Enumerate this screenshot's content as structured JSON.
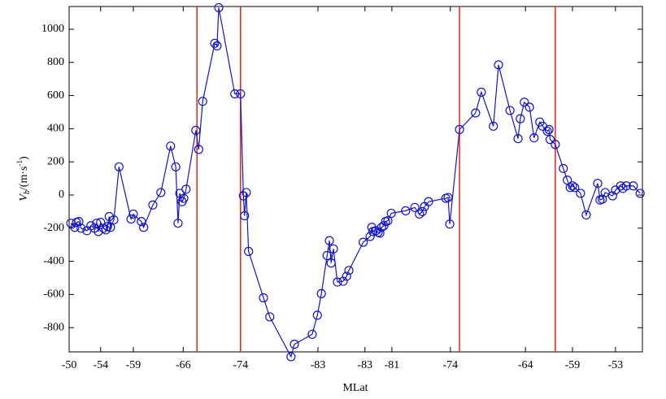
{
  "chart_data": {
    "type": "line",
    "x_label": "MLat",
    "y_label": [
      "V",
      "b",
      "/(m·s",
      "-1",
      ")"
    ],
    "xlim": [
      0,
      100
    ],
    "xticks": [
      {
        "value": 0,
        "label": "-50"
      },
      {
        "value": 5.5,
        "label": "-54"
      },
      {
        "value": 11.2,
        "label": "-59"
      },
      {
        "value": 19.9,
        "label": "-66"
      },
      {
        "value": 29.9,
        "label": "-74"
      },
      {
        "value": 43.4,
        "label": "-83"
      },
      {
        "value": 51.6,
        "label": "-83"
      },
      {
        "value": 56.3,
        "label": "-81"
      },
      {
        "value": 66.5,
        "label": "-74"
      },
      {
        "value": 79.6,
        "label": "-64"
      },
      {
        "value": 87.8,
        "label": "-59"
      },
      {
        "value": 95.3,
        "label": "-53"
      }
    ],
    "ylim": [
      -946,
      1137
    ],
    "yticks": [
      -800,
      -600,
      -400,
      -200,
      0,
      200,
      400,
      600,
      800,
      1000
    ],
    "vlines": {
      "color": "#e8231a",
      "x": [
        22.3,
        29.9,
        68.1,
        84.8
      ]
    },
    "series": [
      {
        "color": "#1414c8",
        "x": [
          0.3,
          1.0,
          1.3,
          1.7,
          2.1,
          3.1,
          3.8,
          4.4,
          4.8,
          5.1,
          5.5,
          6.0,
          6.4,
          6.7,
          7.0,
          7.2,
          7.8,
          8.7,
          10.8,
          11.2,
          12.6,
          13.0,
          14.6,
          16.0,
          17.7,
          18.6,
          19.0,
          19.3,
          19.7,
          20.0,
          20.4,
          22.1,
          22.6,
          23.3,
          25.4,
          25.8,
          26.1,
          28.9,
          29.9,
          30.4,
          30.6,
          30.9,
          31.3,
          33.9,
          35.0,
          38.7,
          39.3,
          42.4,
          43.3,
          44.0,
          45.0,
          45.4,
          45.7,
          46.1,
          46.8,
          47.8,
          48.4,
          48.8,
          51.3,
          52.5,
          52.8,
          53.0,
          53.5,
          53.9,
          54.2,
          54.5,
          54.9,
          55.2,
          55.6,
          56.2,
          58.7,
          60.3,
          61.1,
          61.6,
          62.0,
          62.7,
          65.7,
          66.1,
          66.4,
          68.1,
          70.9,
          71.9,
          74.0,
          74.9,
          76.9,
          78.3,
          78.7,
          79.4,
          80.3,
          81.1,
          82.1,
          82.6,
          83.4,
          83.7,
          83.9,
          84.8,
          86.2,
          86.9,
          87.4,
          87.8,
          88.2,
          89.2,
          90.2,
          92.2,
          92.6,
          93.0,
          93.5,
          94.8,
          95.3,
          96.2,
          96.6,
          97.2,
          98.4,
          99.6
        ],
        "values": [
          -170,
          -195,
          -165,
          -160,
          -200,
          -215,
          -185,
          -200,
          -170,
          -220,
          -165,
          -200,
          -210,
          -190,
          -130,
          -195,
          -150,
          170,
          -145,
          -115,
          -160,
          -195,
          -60,
          15,
          295,
          170,
          -170,
          10,
          -40,
          -20,
          35,
          390,
          275,
          565,
          915,
          900,
          1130,
          610,
          610,
          -5,
          -125,
          15,
          -340,
          -620,
          -735,
          -975,
          -900,
          -840,
          -725,
          -595,
          -365,
          -275,
          -410,
          -325,
          -525,
          -520,
          -490,
          -455,
          -285,
          -250,
          -195,
          -220,
          -215,
          -225,
          -230,
          -195,
          -185,
          -160,
          -155,
          -110,
          -95,
          -75,
          -115,
          -100,
          -70,
          -40,
          -20,
          -15,
          -175,
          395,
          495,
          620,
          415,
          785,
          510,
          340,
          460,
          560,
          530,
          345,
          440,
          415,
          385,
          395,
          335,
          305,
          160,
          90,
          45,
          55,
          45,
          10,
          -120,
          70,
          -30,
          -25,
          15,
          -5,
          30,
          55,
          40,
          55,
          55,
          10
        ]
      }
    ]
  }
}
